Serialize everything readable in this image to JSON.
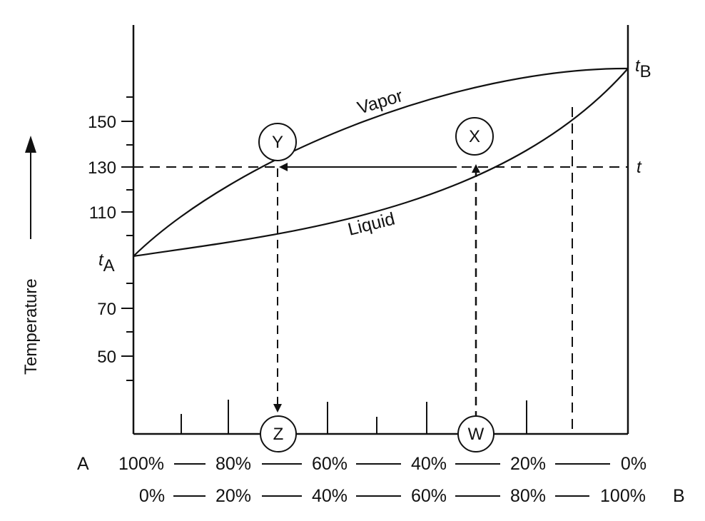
{
  "diagram": {
    "y_axis_label": "Temperature",
    "y_ticks": [
      "150",
      "130",
      "110",
      "70",
      "50"
    ],
    "end_labels": {
      "a_base": "t",
      "a_sub": "A",
      "b_base": "t",
      "b_sub": "B",
      "t_marker": "t"
    },
    "curves": {
      "vapor": "Vapor",
      "liquid": "Liquid"
    },
    "points": {
      "x": "X",
      "y": "Y",
      "z": "Z",
      "w": "W"
    },
    "bottom": {
      "label_a": "A",
      "label_b": "B",
      "row_a": [
        "100%",
        "80%",
        "60%",
        "40%",
        "20%",
        "0%"
      ],
      "row_b": [
        "0%",
        "20%",
        "40%",
        "60%",
        "80%",
        "100%"
      ]
    },
    "colors": {
      "line": "#111111",
      "background": "#ffffff"
    }
  }
}
